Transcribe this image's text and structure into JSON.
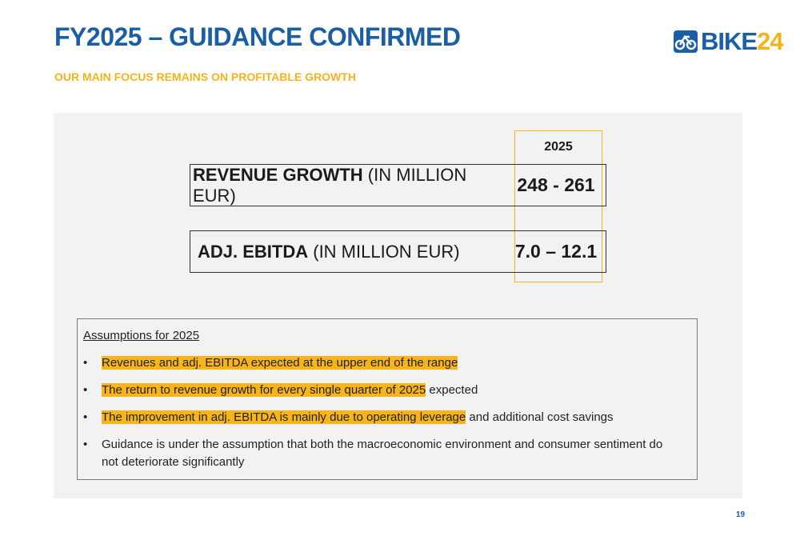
{
  "header": {
    "title": "FY2025 – GUIDANCE CONFIRMED",
    "subtitle": "OUR MAIN FOCUS REMAINS ON PROFITABLE GROWTH"
  },
  "logo": {
    "text_main": "BIKE",
    "text_num": "24",
    "colors": {
      "primary": "#1a5fa6",
      "accent": "#f5b31a"
    }
  },
  "guidance": {
    "year": "2025",
    "rows": [
      {
        "label_bold": "REVENUE GROWTH",
        "label_rest": " (IN MILLION EUR)",
        "value": "248 - 261"
      },
      {
        "label_bold": "ADJ. EBITDA",
        "label_rest": " (IN MILLION EUR)",
        "value": "7.0 – 12.1"
      }
    ]
  },
  "assumptions": {
    "title": "Assumptions for 2025",
    "bullet": "•",
    "items": [
      {
        "highlight": "Revenues and adj. EBITDA expected at the upper end of the range",
        "rest": ""
      },
      {
        "highlight": "The return to revenue growth for every single quarter of 2025",
        "rest": " expected"
      },
      {
        "highlight": "The improvement in adj. EBITDA is mainly due to operating leverage",
        "rest": " and additional cost savings"
      },
      {
        "highlight": "",
        "rest": "Guidance is under the assumption that both the macroeconomic environment and consumer sentiment do not deteriorate significantly"
      }
    ]
  },
  "footer": {
    "page_number": "19"
  }
}
